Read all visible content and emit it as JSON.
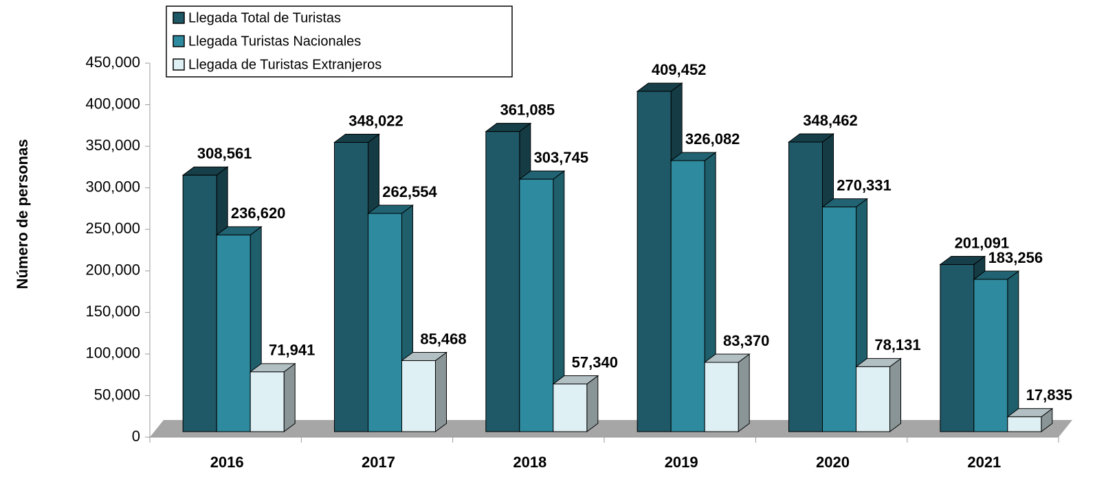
{
  "chart_data": {
    "type": "bar3d",
    "y_axis_label": "Número de personas",
    "categories": [
      "2016",
      "2017",
      "2018",
      "2019",
      "2020",
      "2021"
    ],
    "series": [
      {
        "name": "Llegada Total de Turistas",
        "color": "#1f5866",
        "values": [
          308561,
          348022,
          361085,
          409452,
          348462,
          201091
        ],
        "value_labels": [
          "308,561",
          "348,022",
          "361,085",
          "409,452",
          "348,462",
          "201,091"
        ]
      },
      {
        "name": "Llegada  Turistas Nacionales",
        "color": "#2e8a9e",
        "values": [
          236620,
          262554,
          303745,
          326082,
          270331,
          183256
        ],
        "value_labels": [
          "236,620",
          "262,554",
          "303,745",
          "326,082",
          "270,331",
          "183,256"
        ]
      },
      {
        "name": "Llegada de Turistas Extranjeros",
        "color": "#dff0f5",
        "values": [
          71941,
          85468,
          57340,
          83370,
          78131,
          17835
        ],
        "value_labels": [
          "71,941",
          "85,468",
          "57,340",
          "83,370",
          "78,131",
          "17,835"
        ]
      }
    ],
    "ylim": [
      0,
      450000
    ],
    "yticks": [
      0,
      {
        "value": 50000,
        "label": "50,000"
      },
      {
        "value": 100000,
        "label": "100,000"
      },
      {
        "value": 150000,
        "label": "150,000"
      },
      {
        "value": 200000,
        "label": "200,000"
      },
      {
        "value": 250000,
        "label": "250,000"
      },
      {
        "value": 300000,
        "label": "300,000"
      },
      {
        "value": 350000,
        "label": "350,000"
      },
      {
        "value": 400000,
        "label": "400,000"
      },
      {
        "value": 450000,
        "label": "450,000"
      }
    ],
    "legend": "top-left"
  }
}
